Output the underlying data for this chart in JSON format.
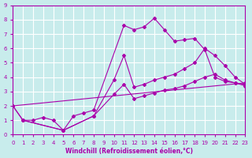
{
  "title": "",
  "xlabel": "Windchill (Refroidissement éolien,°C)",
  "ylabel": "",
  "bg_color": "#c8ecec",
  "line_color": "#aa00aa",
  "grid_color": "#ffffff",
  "xlim": [
    0,
    23
  ],
  "ylim": [
    0,
    9
  ],
  "xticks": [
    0,
    1,
    2,
    3,
    4,
    5,
    6,
    7,
    8,
    9,
    10,
    11,
    12,
    13,
    14,
    15,
    16,
    17,
    18,
    19,
    20,
    21,
    22,
    23
  ],
  "yticks": [
    0,
    1,
    2,
    3,
    4,
    5,
    6,
    7,
    8,
    9
  ],
  "lines": [
    {
      "x": [
        1,
        2,
        3,
        4,
        5,
        6,
        7,
        8,
        11,
        12,
        13,
        14,
        15,
        16,
        17,
        18,
        19,
        20,
        21,
        22,
        23
      ],
      "y": [
        1,
        1,
        1.2,
        1,
        0.3,
        1.3,
        1.5,
        1.7,
        7.6,
        7.3,
        7.5,
        8.1,
        7.3,
        6.5,
        6.6,
        6.7,
        5.9,
        4.0,
        3.7,
        3.6,
        3.5
      ]
    },
    {
      "x": [
        0,
        1,
        5,
        8,
        10,
        11,
        12,
        13,
        14,
        15,
        16,
        17,
        18,
        19,
        20,
        21,
        22,
        23
      ],
      "y": [
        2,
        1,
        0.3,
        1.3,
        3.8,
        5.5,
        3.3,
        3.5,
        3.8,
        4.0,
        4.2,
        4.6,
        5.0,
        6.0,
        5.5,
        4.8,
        4.0,
        3.5
      ]
    },
    {
      "x": [
        0,
        1,
        5,
        8,
        10,
        11,
        12,
        13,
        14,
        15,
        16,
        17,
        18,
        19,
        20,
        21,
        22,
        23
      ],
      "y": [
        2,
        1,
        0.3,
        1.3,
        2.8,
        3.5,
        2.5,
        2.7,
        2.9,
        3.1,
        3.2,
        3.4,
        3.7,
        4.0,
        4.2,
        3.8,
        3.6,
        3.4
      ]
    },
    {
      "x": [
        0,
        23
      ],
      "y": [
        2,
        3.6
      ]
    }
  ]
}
